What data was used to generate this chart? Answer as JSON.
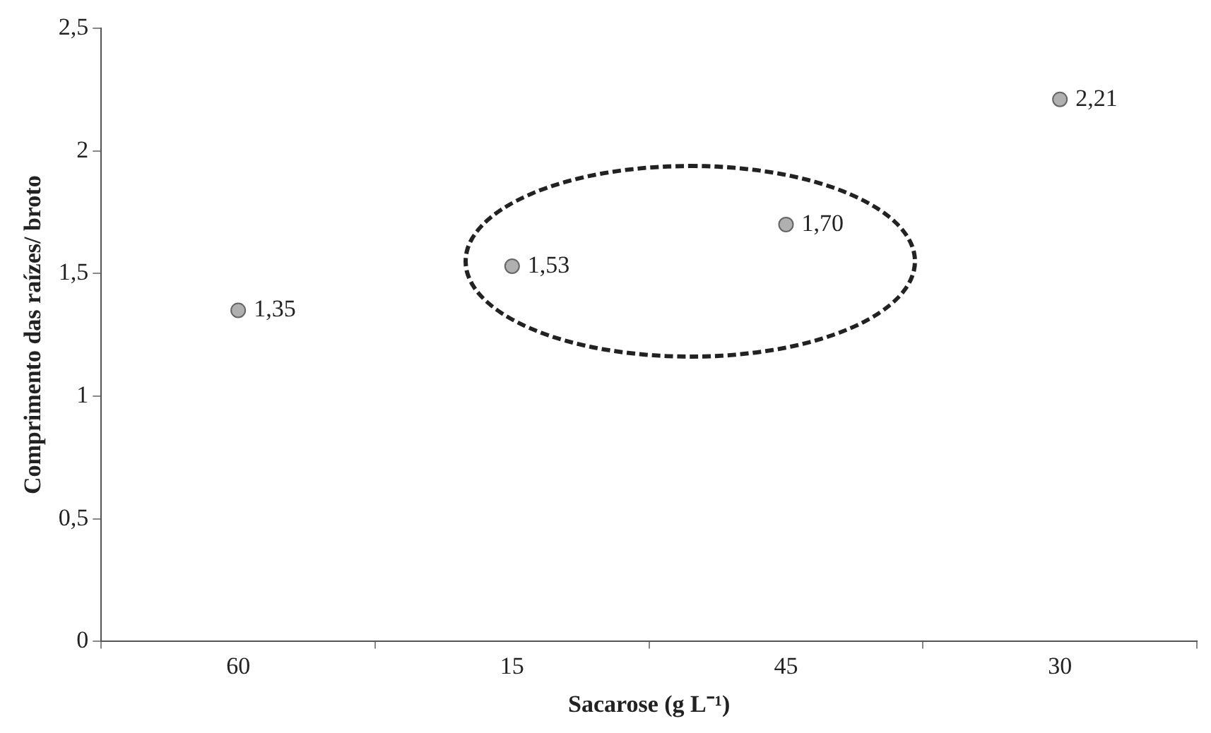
{
  "chart_data": {
    "type": "scatter",
    "xlabel": "Sacarose (g L⁻¹)",
    "ylabel": "Comprimento das raízes/ broto",
    "categories": [
      "60",
      "15",
      "45",
      "30"
    ],
    "series": [
      {
        "color": "#b0b0b0",
        "values": [
          1.35,
          1.53,
          1.7,
          2.21
        ],
        "value_labels": [
          "1,35",
          "1,53",
          "1,70",
          "2,21"
        ]
      }
    ],
    "ylim": [
      0,
      2.5
    ],
    "yticks": [
      0,
      {
        "value": 0.5,
        "label": "0,5"
      },
      1,
      {
        "value": 1.5,
        "label": "1,5"
      },
      2,
      {
        "value": 2.5,
        "label": "2,5"
      }
    ],
    "grid": false,
    "legend": false,
    "marker": "circle"
  }
}
